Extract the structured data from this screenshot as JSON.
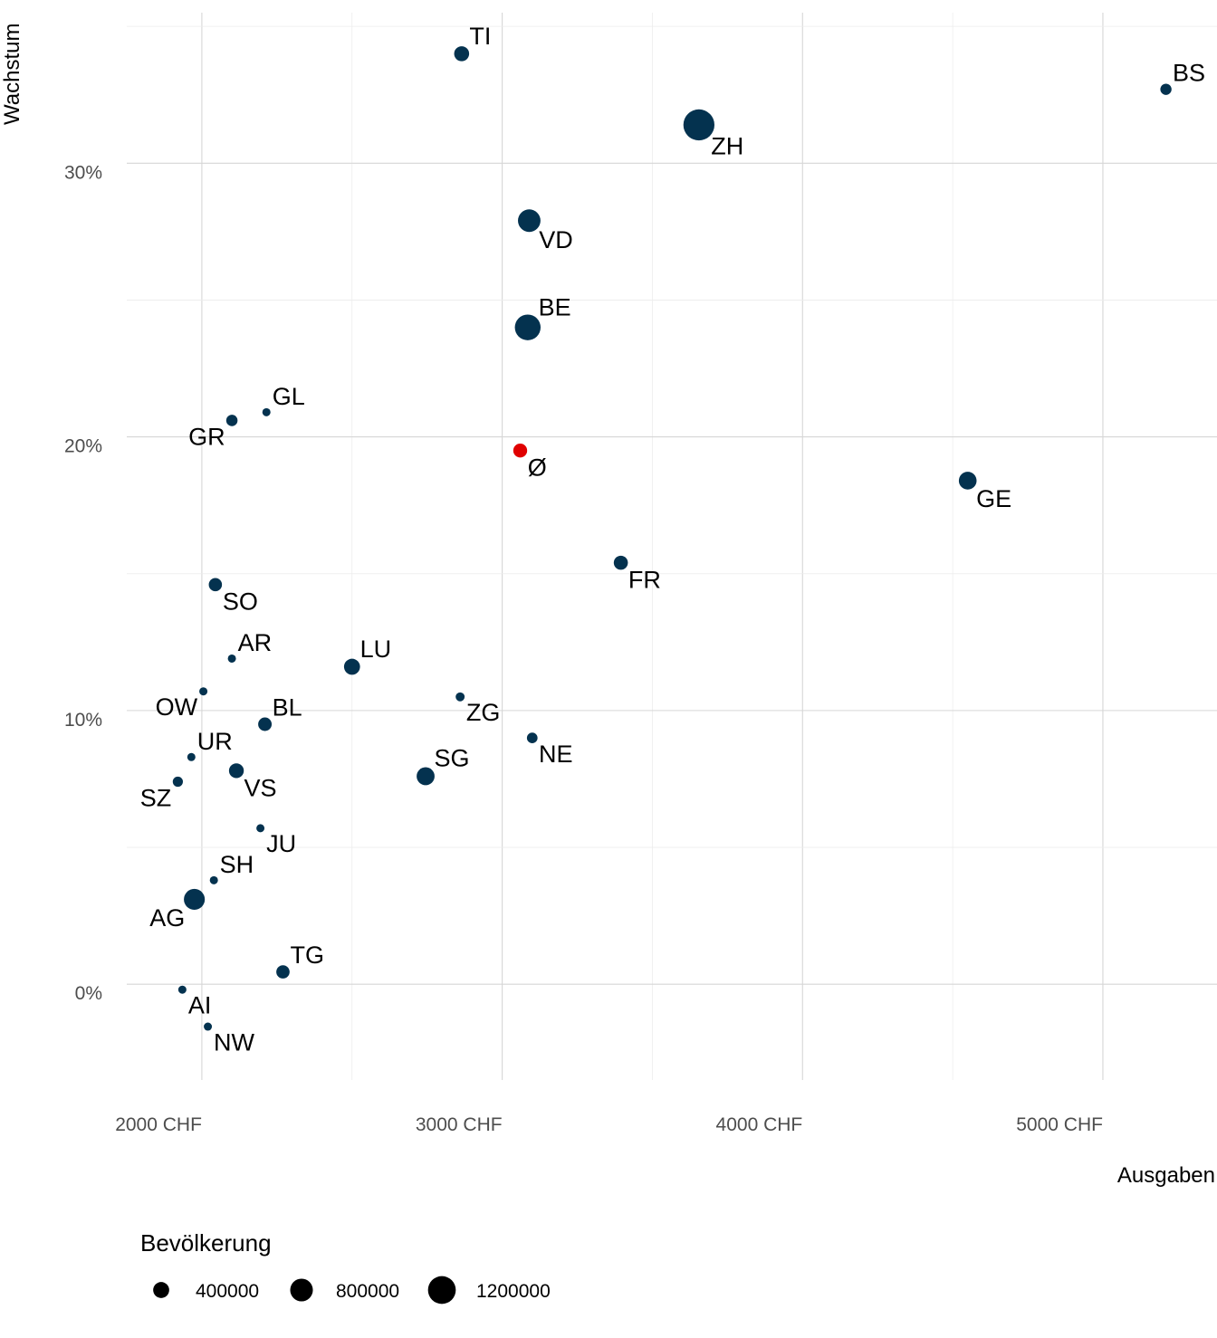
{
  "chart_data": {
    "type": "scatter",
    "xlabel": "Ausgaben",
    "ylabel": "Wachstum",
    "xlim": [
      1750,
      5380
    ],
    "ylim": [
      -3.5,
      35.5
    ],
    "x_ticks": [
      {
        "value": 2000,
        "label": "2000 CHF"
      },
      {
        "value": 3000,
        "label": "3000 CHF"
      },
      {
        "value": 4000,
        "label": "4000 CHF"
      },
      {
        "value": 5000,
        "label": "5000 CHF"
      }
    ],
    "y_ticks": [
      {
        "value": 0,
        "label": "0%"
      },
      {
        "value": 10,
        "label": "10%"
      },
      {
        "value": 20,
        "label": "20%"
      },
      {
        "value": 30,
        "label": "30%"
      }
    ],
    "grid": true,
    "point_color": "#04324f",
    "highlight_color": "#e00000",
    "size_legend": {
      "title": "Bevölkerung",
      "position": "bottom-left",
      "entries": [
        {
          "value": 400000,
          "label": "400000"
        },
        {
          "value": 800000,
          "label": "800000"
        },
        {
          "value": 1200000,
          "label": "1200000"
        }
      ]
    },
    "points": [
      {
        "label": "TI",
        "x": 2865,
        "y": 34.0,
        "pop": 350000,
        "lpos": "above-right"
      },
      {
        "label": "BS",
        "x": 5210,
        "y": 32.7,
        "pop": 195000,
        "lpos": "above-right"
      },
      {
        "label": "ZH",
        "x": 3655,
        "y": 31.4,
        "pop": 1500000,
        "lpos": "below-right"
      },
      {
        "label": "VD",
        "x": 3090,
        "y": 27.9,
        "pop": 790000,
        "lpos": "below-right"
      },
      {
        "label": "BE",
        "x": 3085,
        "y": 24.0,
        "pop": 1030000,
        "lpos": "above-right"
      },
      {
        "label": "GL",
        "x": 2215,
        "y": 20.9,
        "pop": 40000,
        "lpos": "above-right"
      },
      {
        "label": "GR",
        "x": 2100,
        "y": 20.6,
        "pop": 200000,
        "lpos": "below-left"
      },
      {
        "label": "Ø",
        "x": 3060,
        "y": 19.5,
        "pop": 300000,
        "lpos": "below-right",
        "highlight": true
      },
      {
        "label": "GE",
        "x": 4550,
        "y": 18.4,
        "pop": 490000,
        "lpos": "below-right"
      },
      {
        "label": "FR",
        "x": 3395,
        "y": 15.4,
        "pop": 310000,
        "lpos": "below-right"
      },
      {
        "label": "SO",
        "x": 2045,
        "y": 14.6,
        "pop": 270000,
        "lpos": "below-right"
      },
      {
        "label": "AR",
        "x": 2100,
        "y": 11.9,
        "pop": 55000,
        "lpos": "above-right"
      },
      {
        "label": "LU",
        "x": 2500,
        "y": 11.6,
        "pop": 400000,
        "lpos": "above-right"
      },
      {
        "label": "OW",
        "x": 2005,
        "y": 10.7,
        "pop": 38000,
        "lpos": "below-left"
      },
      {
        "label": "ZG",
        "x": 2860,
        "y": 10.5,
        "pop": 125000,
        "lpos": "below-right"
      },
      {
        "label": "BL",
        "x": 2210,
        "y": 9.5,
        "pop": 285000,
        "lpos": "above-right"
      },
      {
        "label": "NE",
        "x": 3100,
        "y": 9.0,
        "pop": 175000,
        "lpos": "below-right"
      },
      {
        "label": "UR",
        "x": 1965,
        "y": 8.3,
        "pop": 36000,
        "lpos": "above-right"
      },
      {
        "label": "VS",
        "x": 2115,
        "y": 7.8,
        "pop": 340000,
        "lpos": "below-right"
      },
      {
        "label": "SG",
        "x": 2745,
        "y": 7.6,
        "pop": 500000,
        "lpos": "above-right"
      },
      {
        "label": "SZ",
        "x": 1920,
        "y": 7.4,
        "pop": 160000,
        "lpos": "below-left"
      },
      {
        "label": "JU",
        "x": 2195,
        "y": 5.7,
        "pop": 73000,
        "lpos": "below-right"
      },
      {
        "label": "SH",
        "x": 2040,
        "y": 3.8,
        "pop": 82000,
        "lpos": "above-right"
      },
      {
        "label": "AG",
        "x": 1975,
        "y": 3.1,
        "pop": 680000,
        "lpos": "below-left"
      },
      {
        "label": "TG",
        "x": 2270,
        "y": 0.45,
        "pop": 275000,
        "lpos": "above-right"
      },
      {
        "label": "AI",
        "x": 1935,
        "y": -0.2,
        "pop": 16000,
        "lpos": "below-right"
      },
      {
        "label": "NW",
        "x": 2020,
        "y": -1.55,
        "pop": 43000,
        "lpos": "below-right"
      }
    ]
  }
}
